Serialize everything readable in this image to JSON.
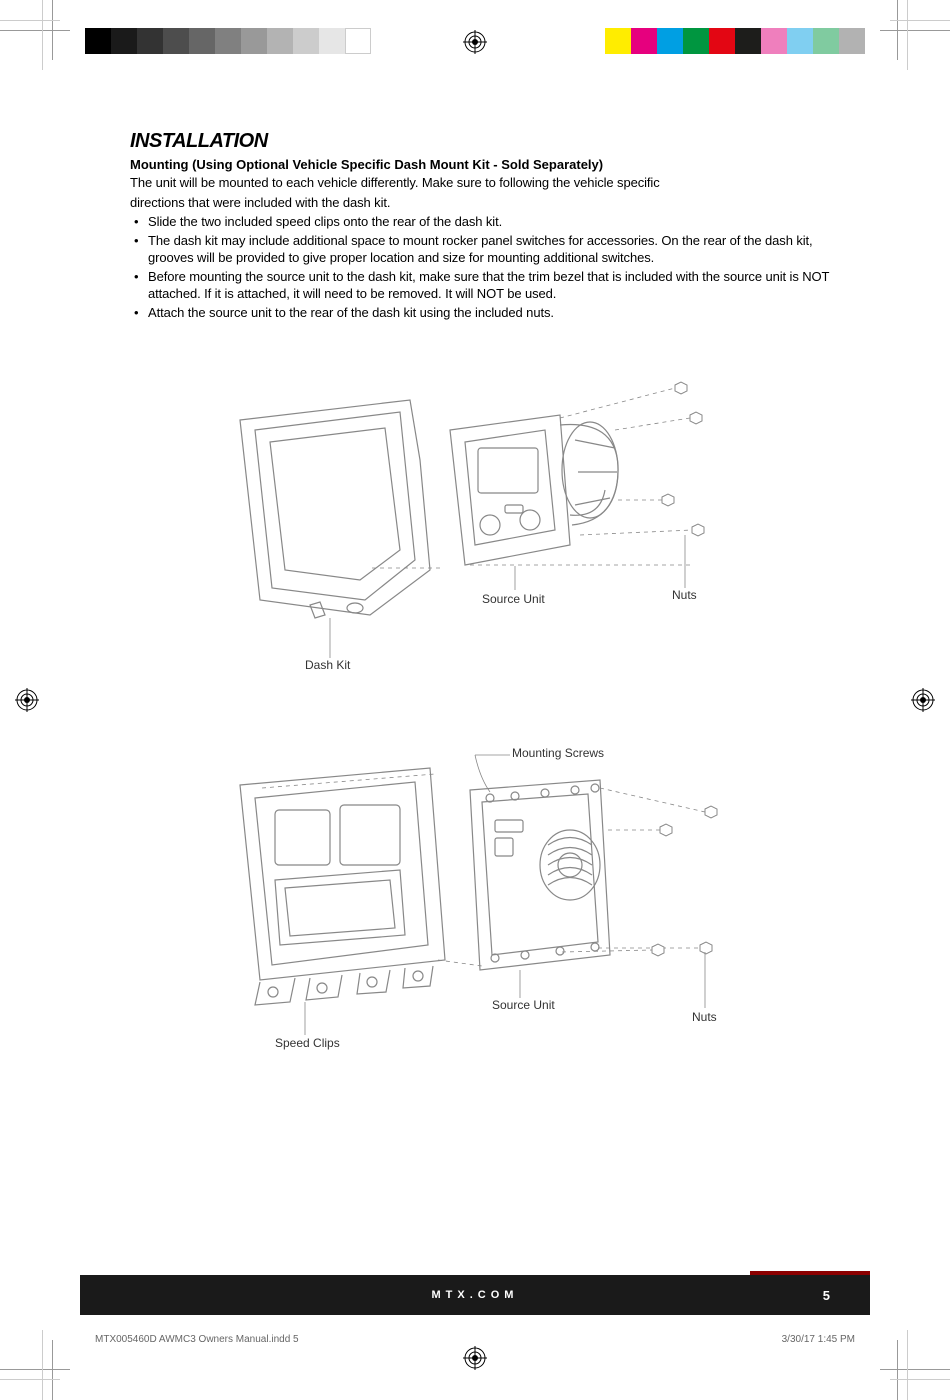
{
  "section_title": "INSTALLATION",
  "sub_title": "Mounting (Using Optional Vehicle Specific Dash Mount Kit - Sold Separately)",
  "intro_line1": "The unit will be mounted to each vehicle differently. Make sure to following the vehicle specific",
  "intro_line2": "directions that were included with the dash kit.",
  "bullets": [
    "Slide the two included speed clips onto the rear of the dash kit.",
    "The dash kit may include additional space to mount rocker panel switches for accessories. On the rear of the dash kit, grooves will be provided to give proper location and size for mounting additional switches.",
    "Before mounting the source unit to the dash kit, make sure that the trim bezel that is included with the source unit is NOT attached. If it is attached, it will need to be removed. It will NOT be used.",
    "Attach the source unit to the rear of the dash kit using the included nuts."
  ],
  "diagram1": {
    "labels": {
      "dash_kit": "Dash Kit",
      "source_unit": "Source Unit",
      "nuts": "Nuts"
    }
  },
  "diagram2": {
    "labels": {
      "mounting_screws": "Mounting Screws",
      "source_unit": "Source Unit",
      "speed_clips": "Speed Clips",
      "nuts": "Nuts"
    }
  },
  "footer": {
    "url": "MTX.COM",
    "page_number": "5"
  },
  "slug": {
    "file": "MTX005460D AWMC3 Owners Manual.indd   5",
    "timestamp": "3/30/17   1:45 PM"
  },
  "color_bars_left": [
    "#000",
    "#1a1a1a",
    "#333",
    "#4d4d4d",
    "#666",
    "#808080",
    "#999",
    "#b3b3b3",
    "#ccc",
    "#e6e6e6",
    "#fff"
  ],
  "color_bars_right": [
    "#ffed00",
    "#e6007e",
    "#009fe3",
    "#009640",
    "#e30613",
    "#1d1d1b",
    "#ef7fbd",
    "#80cff1",
    "#80cba0",
    "#b2b2b2"
  ]
}
